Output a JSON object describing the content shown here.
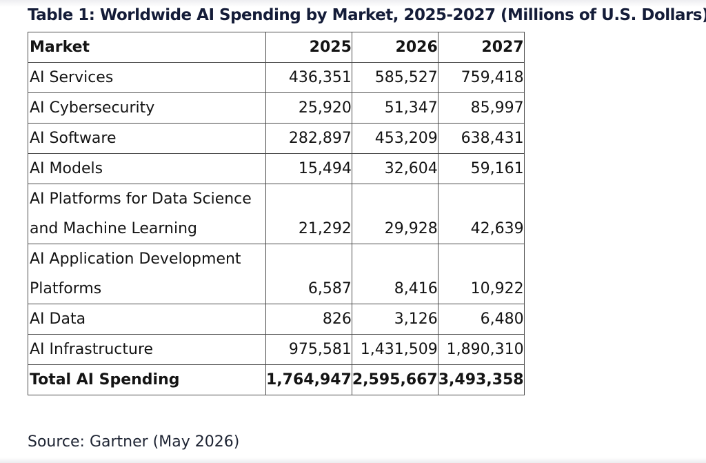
{
  "title": "Table 1: Worldwide AI Spending by Market, 2025-2027 (Millions of U.S. Dollars)",
  "table": {
    "headers": [
      "Market",
      "2025",
      "2026",
      "2027"
    ],
    "rows": [
      {
        "market": "AI Services",
        "values": [
          "436,351",
          "585,527",
          "759,418"
        ]
      },
      {
        "market": "AI Cybersecurity",
        "values": [
          "25,920",
          "51,347",
          "85,997"
        ]
      },
      {
        "market": "AI Software",
        "values": [
          "282,897",
          "453,209",
          "638,431"
        ]
      },
      {
        "market": "AI Models",
        "values": [
          "15,494",
          "32,604",
          "59,161"
        ]
      },
      {
        "market": "AI Platforms for Data Science and Machine Learning",
        "values": [
          "21,292",
          "29,928",
          "42,639"
        ]
      },
      {
        "market": "AI Application Development Platforms",
        "values": [
          "6,587",
          "8,416",
          "10,922"
        ]
      },
      {
        "market": "AI Data",
        "values": [
          "826",
          "3,126",
          "6,480"
        ]
      },
      {
        "market": "AI Infrastructure",
        "values": [
          "975,581",
          "1,431,509",
          "1,890,310"
        ]
      }
    ],
    "total": {
      "market": "Total AI Spending",
      "values": [
        "1,764,947",
        "2,595,667",
        "3,493,358"
      ]
    }
  },
  "source": "Source: Gartner (May 2026)"
}
